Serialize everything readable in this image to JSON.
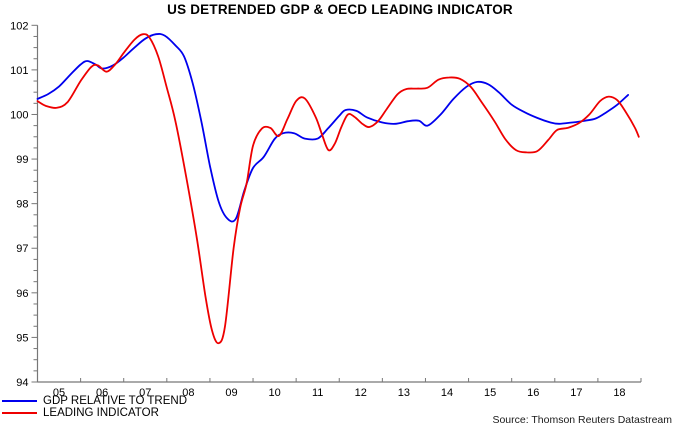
{
  "title": "US DETRENDED GDP & OECD LEADING INDICATOR",
  "source": "Source: Thomson Reuters Datastream",
  "legend": [
    {
      "label": "GDP RELATIVE TO TREND",
      "color": "#0000ee"
    },
    {
      "label": "LEADING INDICATOR",
      "color": "#ee0000"
    }
  ],
  "chart_data": {
    "type": "line",
    "title": "US DETRENDED GDP & OECD LEADING INDICATOR",
    "xlabel": "",
    "ylabel": "",
    "grid": false,
    "legend_position": "bottom-left",
    "x_axis": {
      "range_years": [
        2005,
        2019
      ],
      "tick_labels": [
        "05",
        "06",
        "07",
        "08",
        "09",
        "10",
        "11",
        "12",
        "13",
        "14",
        "15",
        "16",
        "17",
        "18"
      ]
    },
    "y_axis": {
      "min": 94,
      "max": 102,
      "major_step": 1,
      "minor_step": 0.25,
      "tick_labels": [
        "94",
        "95",
        "96",
        "97",
        "98",
        "99",
        "100",
        "101",
        "102"
      ]
    },
    "series": [
      {
        "name": "GDP RELATIVE TO TREND",
        "color": "#0000ee",
        "points": [
          [
            2005.0,
            100.35
          ],
          [
            2005.25,
            100.46
          ],
          [
            2005.5,
            100.63
          ],
          [
            2005.75,
            100.88
          ],
          [
            2006.0,
            101.12
          ],
          [
            2006.15,
            101.2
          ],
          [
            2006.35,
            101.12
          ],
          [
            2006.5,
            101.03
          ],
          [
            2006.75,
            101.1
          ],
          [
            2007.0,
            101.28
          ],
          [
            2007.25,
            101.5
          ],
          [
            2007.5,
            101.7
          ],
          [
            2007.75,
            101.8
          ],
          [
            2007.95,
            101.77
          ],
          [
            2008.2,
            101.55
          ],
          [
            2008.4,
            101.3
          ],
          [
            2008.6,
            100.7
          ],
          [
            2008.8,
            99.85
          ],
          [
            2009.0,
            98.85
          ],
          [
            2009.2,
            98.05
          ],
          [
            2009.4,
            97.67
          ],
          [
            2009.6,
            97.66
          ],
          [
            2009.8,
            98.3
          ],
          [
            2010.0,
            98.8
          ],
          [
            2010.25,
            99.05
          ],
          [
            2010.5,
            99.45
          ],
          [
            2010.7,
            99.58
          ],
          [
            2010.95,
            99.58
          ],
          [
            2011.2,
            99.46
          ],
          [
            2011.5,
            99.46
          ],
          [
            2011.75,
            99.7
          ],
          [
            2012.0,
            99.97
          ],
          [
            2012.15,
            100.1
          ],
          [
            2012.4,
            100.08
          ],
          [
            2012.65,
            99.93
          ],
          [
            2013.0,
            99.82
          ],
          [
            2013.3,
            99.79
          ],
          [
            2013.6,
            99.85
          ],
          [
            2013.85,
            99.86
          ],
          [
            2014.05,
            99.75
          ],
          [
            2014.35,
            100.0
          ],
          [
            2014.65,
            100.35
          ],
          [
            2014.95,
            100.62
          ],
          [
            2015.2,
            100.73
          ],
          [
            2015.45,
            100.68
          ],
          [
            2015.7,
            100.5
          ],
          [
            2016.0,
            100.22
          ],
          [
            2016.3,
            100.05
          ],
          [
            2016.6,
            99.92
          ],
          [
            2016.9,
            99.82
          ],
          [
            2017.1,
            99.79
          ],
          [
            2017.4,
            99.82
          ],
          [
            2017.7,
            99.86
          ],
          [
            2017.95,
            99.91
          ],
          [
            2018.2,
            100.05
          ],
          [
            2018.45,
            100.22
          ],
          [
            2018.7,
            100.44
          ]
        ]
      },
      {
        "name": "LEADING INDICATOR",
        "color": "#ee0000",
        "points": [
          [
            2005.0,
            100.3
          ],
          [
            2005.2,
            100.19
          ],
          [
            2005.45,
            100.15
          ],
          [
            2005.7,
            100.28
          ],
          [
            2006.0,
            100.75
          ],
          [
            2006.25,
            101.07
          ],
          [
            2006.4,
            101.1
          ],
          [
            2006.6,
            100.96
          ],
          [
            2006.8,
            101.12
          ],
          [
            2007.0,
            101.38
          ],
          [
            2007.25,
            101.68
          ],
          [
            2007.45,
            101.8
          ],
          [
            2007.6,
            101.72
          ],
          [
            2007.8,
            101.3
          ],
          [
            2008.0,
            100.6
          ],
          [
            2008.2,
            99.85
          ],
          [
            2008.45,
            98.6
          ],
          [
            2008.7,
            97.2
          ],
          [
            2008.9,
            95.9
          ],
          [
            2009.05,
            95.15
          ],
          [
            2009.2,
            94.87
          ],
          [
            2009.35,
            95.25
          ],
          [
            2009.55,
            97.0
          ],
          [
            2009.7,
            97.9
          ],
          [
            2009.85,
            98.45
          ],
          [
            2010.0,
            99.3
          ],
          [
            2010.2,
            99.68
          ],
          [
            2010.4,
            99.7
          ],
          [
            2010.6,
            99.52
          ],
          [
            2010.8,
            99.9
          ],
          [
            2011.0,
            100.3
          ],
          [
            2011.2,
            100.36
          ],
          [
            2011.45,
            99.95
          ],
          [
            2011.6,
            99.55
          ],
          [
            2011.75,
            99.2
          ],
          [
            2011.9,
            99.35
          ],
          [
            2012.05,
            99.72
          ],
          [
            2012.2,
            100.0
          ],
          [
            2012.35,
            99.95
          ],
          [
            2012.55,
            99.78
          ],
          [
            2012.7,
            99.72
          ],
          [
            2012.9,
            99.85
          ],
          [
            2013.1,
            100.12
          ],
          [
            2013.35,
            100.45
          ],
          [
            2013.55,
            100.57
          ],
          [
            2013.8,
            100.58
          ],
          [
            2014.05,
            100.6
          ],
          [
            2014.3,
            100.78
          ],
          [
            2014.55,
            100.83
          ],
          [
            2014.8,
            100.8
          ],
          [
            2015.05,
            100.62
          ],
          [
            2015.3,
            100.28
          ],
          [
            2015.6,
            99.85
          ],
          [
            2015.85,
            99.45
          ],
          [
            2016.1,
            99.2
          ],
          [
            2016.35,
            99.15
          ],
          [
            2016.6,
            99.18
          ],
          [
            2016.85,
            99.43
          ],
          [
            2017.05,
            99.65
          ],
          [
            2017.3,
            99.7
          ],
          [
            2017.55,
            99.8
          ],
          [
            2017.8,
            100.0
          ],
          [
            2018.05,
            100.3
          ],
          [
            2018.25,
            100.4
          ],
          [
            2018.45,
            100.32
          ],
          [
            2018.65,
            100.05
          ],
          [
            2018.85,
            99.72
          ],
          [
            2018.95,
            99.5
          ]
        ]
      }
    ]
  }
}
